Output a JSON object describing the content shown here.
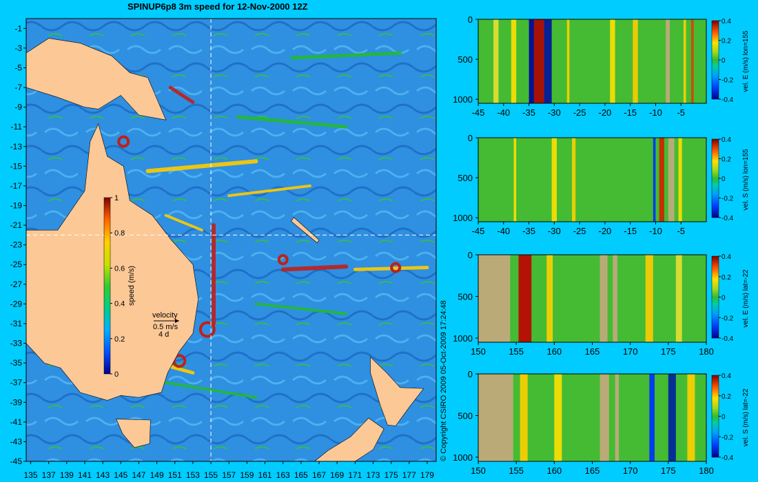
{
  "title": "SPINUP6p8 3m speed for 12-Nov-2000 12Z",
  "copyright": "© Copyright CSIRO 2009  05-Oct-2009 17:24:48",
  "colors": {
    "background": "#00ccff",
    "land": "#fbc896",
    "land_depth": "#c8a87f",
    "ocean_base": "#2f8fe0",
    "eddy_fast": "#c0201a",
    "eddy_mid": "#ffcc00",
    "eddy_green": "#22bb33"
  },
  "chart_data": [
    {
      "type": "heatmap",
      "name_hint": "map",
      "x_ticks": [
        "135",
        "137",
        "139",
        "141",
        "143",
        "145",
        "147",
        "149",
        "151",
        "153",
        "155",
        "157",
        "159",
        "161",
        "163",
        "165",
        "167",
        "169",
        "171",
        "173",
        "175",
        "177",
        "179"
      ],
      "y_ticks": [
        "-1",
        "-3",
        "-5",
        "-7",
        "-9",
        "-11",
        "-13",
        "-15",
        "-17",
        "-19",
        "-21",
        "-23",
        "-25",
        "-27",
        "-29",
        "-31",
        "-33",
        "-35",
        "-37",
        "-39",
        "-41",
        "-43",
        "-45"
      ],
      "xlim": [
        134.5,
        180
      ],
      "ylim": [
        -45,
        0
      ],
      "crosshair": {
        "lon": 155,
        "lat": -22
      },
      "colorbar": {
        "label": "speed (m/s)",
        "ticks": [
          "1",
          "0.8",
          "0.6",
          "0.4",
          "0.2",
          "0"
        ],
        "range": [
          0,
          1
        ]
      },
      "velocity_key": {
        "label": "velocity",
        "speed": "0.5 m/s",
        "duration": "4 d"
      }
    },
    {
      "type": "heatmap",
      "x_ticks": [
        "-45",
        "-40",
        "-35",
        "-30",
        "-25",
        "-20",
        "-15",
        "-10",
        "-5"
      ],
      "xlim": [
        -45,
        0
      ],
      "y_ticks": [
        "0",
        "500",
        "1000"
      ],
      "ylim": [
        0,
        1050
      ],
      "colorbar": {
        "label": "vel. E (m/s) lon=155",
        "ticks": [
          "0.4",
          "0.2",
          "0",
          "-0.2",
          "-0.4"
        ],
        "range": [
          -0.4,
          0.4
        ]
      }
    },
    {
      "type": "heatmap",
      "x_ticks": [
        "-45",
        "-40",
        "-35",
        "-30",
        "-25",
        "-20",
        "-15",
        "-10",
        "-5"
      ],
      "xlim": [
        -45,
        0
      ],
      "y_ticks": [
        "0",
        "500",
        "1000"
      ],
      "ylim": [
        0,
        1050
      ],
      "colorbar": {
        "label": "vel. S (m/s) lon=155",
        "ticks": [
          "0.4",
          "0.2",
          "0",
          "-0.2",
          "-0.4"
        ],
        "range": [
          -0.4,
          0.4
        ]
      }
    },
    {
      "type": "heatmap",
      "x_ticks": [
        "150",
        "155",
        "160",
        "165",
        "170",
        "175",
        "180"
      ],
      "xlim": [
        150,
        180
      ],
      "y_ticks": [
        "0",
        "500",
        "1000"
      ],
      "ylim": [
        0,
        1050
      ],
      "colorbar": {
        "label": "vel. E (m/s) lat=-22",
        "ticks": [
          "0.4",
          "0.2",
          "0",
          "-0.2",
          "-0.4"
        ],
        "range": [
          -0.4,
          0.4
        ]
      }
    },
    {
      "type": "heatmap",
      "x_ticks": [
        "150",
        "155",
        "160",
        "165",
        "170",
        "175",
        "180"
      ],
      "xlim": [
        150,
        180
      ],
      "y_ticks": [
        "0",
        "500",
        "1000"
      ],
      "ylim": [
        0,
        1050
      ],
      "colorbar": {
        "label": "vel. S (m/s) lat=-22",
        "ticks": [
          "0.4",
          "0.2",
          "0",
          "-0.2",
          "-0.4"
        ],
        "range": [
          -0.4,
          0.4
        ]
      }
    }
  ]
}
